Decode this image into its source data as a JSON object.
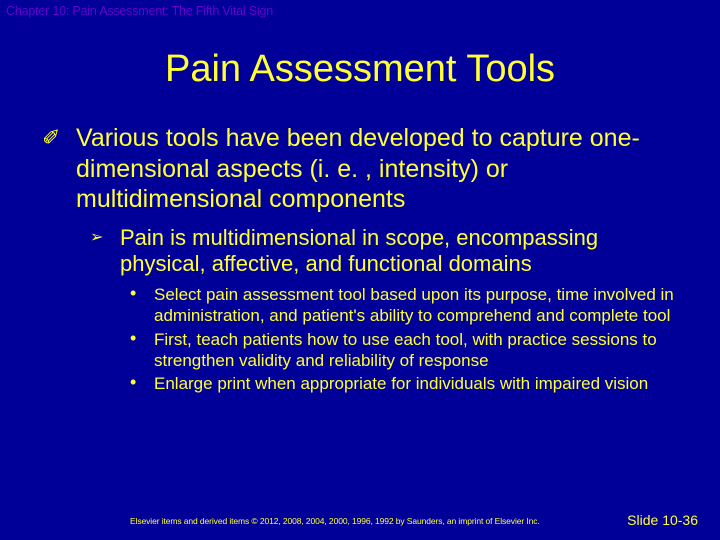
{
  "colors": {
    "background": "#000099",
    "text": "#ffff33",
    "header": "#6600cc"
  },
  "typography": {
    "title_fontsize": 38,
    "lvl1_fontsize": 25,
    "lvl2_fontsize": 22,
    "lvl3_fontsize": 17,
    "header_fontsize": 12.5,
    "footer_fontsize": 8.5,
    "slidenum_fontsize": 14,
    "font_family": "Arial"
  },
  "header": "Chapter 10: Pain Assessment: The Fifth Vital Sign",
  "title": "Pain Assessment Tools",
  "bullets": {
    "lvl1_glyph": "✐",
    "lvl2_glyph": "➢",
    "lvl3_glyph": "•",
    "item1": {
      "text": "Various tools have been developed to capture one-dimensional aspects (i. e. , intensity) or multidimensional components",
      "sub1": {
        "text": "Pain is multidimensional in scope, encompassing physical, affective, and functional domains",
        "s1": "Select pain assessment tool based upon its purpose, time involved in administration, and patient's ability to comprehend and complete tool",
        "s2": "First, teach patients how to use each tool, with practice sessions to strengthen validity and reliability of response",
        "s3": "Enlarge print when appropriate for individuals with impaired vision"
      }
    }
  },
  "footer": {
    "copyright": "Elsevier items and derived items © 2012, 2008, 2004, 2000, 1996, 1992 by Saunders, an imprint of Elsevier Inc.",
    "slide": "Slide 10-36"
  }
}
